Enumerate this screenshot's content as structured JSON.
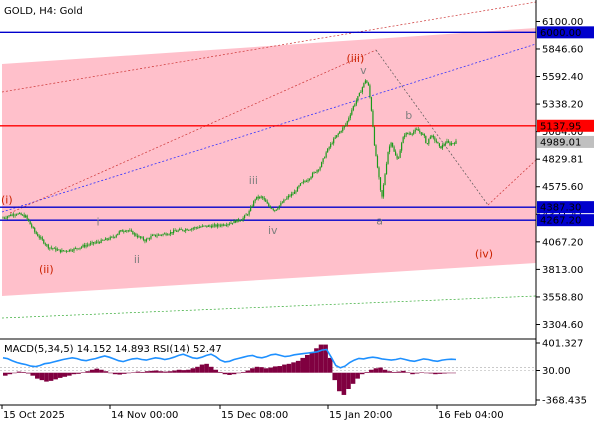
{
  "chart_data": {
    "type": "candlestick",
    "title": "GOLD, H4:  Gold",
    "colors": {
      "channel_fill": "#ffc0cb",
      "candle": "#1a9a1a",
      "wave_main": "#cc2200",
      "wave_sub": "#7f7f7f",
      "level_blue": "#0000cc",
      "level_red": "#ff0000",
      "current_price_bg": "#c0c0c0"
    },
    "price_axis": {
      "min": 3180,
      "max": 6280,
      "ticks": [
        "6100.00",
        "5846.60",
        "5592.40",
        "5338.20",
        "5084.00",
        "4829.81",
        "4575.60",
        "4321.41",
        "4067.20",
        "3813.00",
        "3558.80",
        "3304.60"
      ]
    },
    "time_axis": {
      "labels": [
        "15 Oct 2025",
        "14 Nov 00:00",
        "15 Dec 08:00",
        "15 Jan 20:00",
        "16 Feb 04:00"
      ]
    },
    "levels": [
      {
        "label": "6000.00",
        "value": 6000,
        "color": "#0000cc"
      },
      {
        "label": "5137.95",
        "value": 5137.95,
        "color": "#ff0000"
      },
      {
        "label": "4387.30",
        "value": 4387.3,
        "color": "#0000cc"
      },
      {
        "label": "4267.20",
        "value": 4267.2,
        "color": "#0000cc"
      }
    ],
    "current_price": {
      "label": "4989.01",
      "value": 4989.01
    },
    "wave_labels": [
      {
        "text": "(i)",
        "color": "#cc2200"
      },
      {
        "text": "(ii)",
        "color": "#cc2200"
      },
      {
        "text": "(iii)",
        "color": "#cc2200"
      },
      {
        "text": "(iv)",
        "color": "#cc2200"
      },
      {
        "text": "i",
        "color": "#7f7f7f"
      },
      {
        "text": "ii",
        "color": "#7f7f7f"
      },
      {
        "text": "iii",
        "color": "#7f7f7f"
      },
      {
        "text": "iv",
        "color": "#7f7f7f"
      },
      {
        "text": "v",
        "color": "#7f7f7f"
      },
      {
        "text": "a",
        "color": "#7f7f7f"
      },
      {
        "text": "b",
        "color": "#7f7f7f"
      }
    ],
    "price_path": [
      [
        0,
        4290
      ],
      [
        4,
        4330
      ],
      [
        7,
        4300
      ],
      [
        10,
        4150
      ],
      [
        14,
        4020
      ],
      [
        18,
        3980
      ],
      [
        22,
        4000
      ],
      [
        26,
        4040
      ],
      [
        30,
        4070
      ],
      [
        34,
        4110
      ],
      [
        36,
        4160
      ],
      [
        38,
        4180
      ],
      [
        40,
        4150
      ],
      [
        42,
        4110
      ],
      [
        44,
        4080
      ],
      [
        46,
        4120
      ],
      [
        50,
        4140
      ],
      [
        54,
        4170
      ],
      [
        58,
        4190
      ],
      [
        62,
        4210
      ],
      [
        66,
        4215
      ],
      [
        70,
        4240
      ],
      [
        74,
        4280
      ],
      [
        76,
        4340
      ],
      [
        78,
        4470
      ],
      [
        80,
        4480
      ],
      [
        82,
        4400
      ],
      [
        84,
        4360
      ],
      [
        86,
        4420
      ],
      [
        88,
        4480
      ],
      [
        90,
        4520
      ],
      [
        92,
        4600
      ],
      [
        94,
        4640
      ],
      [
        96,
        4700
      ],
      [
        98,
        4760
      ],
      [
        100,
        4900
      ],
      [
        102,
        5000
      ],
      [
        104,
        5080
      ],
      [
        106,
        5150
      ],
      [
        108,
        5300
      ],
      [
        110,
        5420
      ],
      [
        112,
        5560
      ],
      [
        113,
        5500
      ],
      [
        114,
        5250
      ],
      [
        115,
        4900
      ],
      [
        116,
        4700
      ],
      [
        117,
        4450
      ],
      [
        118,
        4680
      ],
      [
        119,
        4900
      ],
      [
        120,
        5000
      ],
      [
        121,
        4880
      ],
      [
        122,
        4820
      ],
      [
        123,
        4950
      ],
      [
        124,
        5060
      ],
      [
        126,
        5070
      ],
      [
        128,
        5100
      ],
      [
        130,
        5050
      ],
      [
        131,
        4960
      ],
      [
        132,
        5050
      ],
      [
        134,
        4990
      ],
      [
        135,
        4930
      ],
      [
        137,
        4990
      ],
      [
        138,
        4970
      ],
      [
        140,
        4989
      ]
    ],
    "indicator": {
      "title": "MACD(5,34,5) 14.152 14.893 RSI(14) 52.47",
      "ticks": [
        "401.327",
        "30.00",
        "-368.435"
      ],
      "max": 401.327,
      "min": -368.435,
      "histogram": [
        -40,
        -20,
        0,
        15,
        10,
        -10,
        -40,
        -80,
        -100,
        -120,
        -110,
        -90,
        -70,
        -55,
        -40,
        -20,
        -15,
        5,
        20,
        40,
        55,
        40,
        20,
        0,
        -20,
        -25,
        -15,
        -5,
        5,
        15,
        10,
        20,
        25,
        30,
        20,
        15,
        20,
        30,
        40,
        35,
        40,
        60,
        80,
        110,
        120,
        80,
        40,
        10,
        -20,
        -30,
        -20,
        0,
        10,
        30,
        60,
        80,
        75,
        60,
        70,
        85,
        90,
        110,
        120,
        140,
        160,
        200,
        240,
        280,
        330,
        380,
        380,
        200,
        -100,
        -250,
        -300,
        -220,
        -150,
        -80,
        -20,
        10,
        40,
        60,
        70,
        40,
        20,
        10,
        15,
        25,
        5,
        -20,
        -10,
        5,
        -5,
        -10,
        -20,
        -15,
        -10,
        0,
        -5
      ],
      "rsi": [
        58,
        55,
        48,
        42,
        38,
        35,
        30,
        28,
        32,
        38,
        40,
        44,
        48,
        52,
        55,
        58,
        55,
        50,
        48,
        52,
        55,
        60,
        64,
        60,
        54,
        48,
        45,
        50,
        54,
        56,
        52,
        50,
        54,
        58,
        56,
        52,
        55,
        60,
        66,
        70,
        64,
        58,
        56,
        60,
        66,
        70,
        62,
        50,
        44,
        46,
        52,
        56,
        60,
        64,
        66,
        60,
        58,
        62,
        68,
        70,
        66,
        62,
        64,
        68,
        70,
        72,
        74,
        76,
        78,
        84,
        86,
        60,
        32,
        24,
        30,
        42,
        50,
        56,
        54,
        58,
        60,
        58,
        54,
        52,
        50,
        52,
        56,
        52,
        48,
        46,
        50,
        54,
        52,
        48,
        46,
        50,
        52,
        53,
        52
      ]
    }
  }
}
